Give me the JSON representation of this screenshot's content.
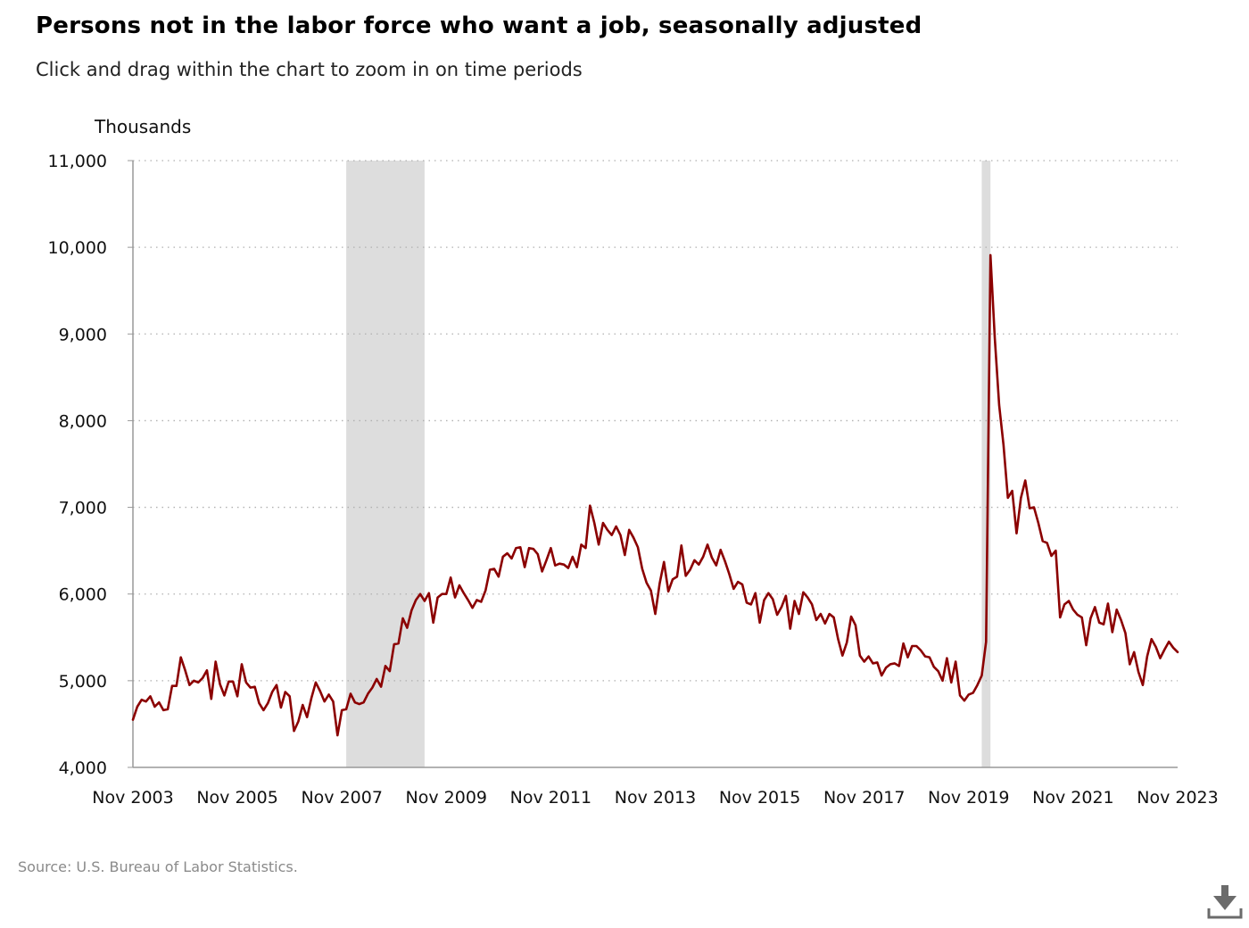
{
  "title": "Persons not in the labor force who want a job, seasonally adjusted",
  "subtitle": "Click and drag within the chart to zoom in on time periods",
  "source": "Source: U.S. Bureau of Labor Statistics.",
  "download_icon": "download-icon",
  "colors": {
    "line": "#8b0000",
    "recession": "#dddddd",
    "grid": "#b0b0b0",
    "axis": "#999999"
  },
  "chart_data": {
    "type": "line",
    "ylabel": "Thousands",
    "ylim": [
      4000,
      11000
    ],
    "yticks": [
      4000,
      5000,
      6000,
      7000,
      8000,
      9000,
      10000,
      11000
    ],
    "ytick_labels": [
      "4,000",
      "5,000",
      "6,000",
      "7,000",
      "8,000",
      "9,000",
      "10,000",
      "11,000"
    ],
    "xlim": [
      "2003-11",
      "2023-11"
    ],
    "xticks": [
      "2003-11",
      "2005-11",
      "2007-11",
      "2009-11",
      "2011-11",
      "2013-11",
      "2015-11",
      "2017-11",
      "2019-11",
      "2021-11",
      "2023-11"
    ],
    "xtick_labels": [
      "Nov 2003",
      "Nov 2005",
      "Nov 2007",
      "Nov 2009",
      "Nov 2011",
      "Nov 2013",
      "Nov 2015",
      "Nov 2017",
      "Nov 2019",
      "Nov 2021",
      "Nov 2023"
    ],
    "grid": "horizontal dotted",
    "recessions": [
      [
        "2007-12",
        "2009-06"
      ],
      [
        "2020-02",
        "2020-04"
      ]
    ],
    "series": [
      {
        "start": "2003-11",
        "frequency": "monthly",
        "values": [
          4550,
          4700,
          4780,
          4760,
          4820,
          4700,
          4750,
          4660,
          4670,
          4940,
          4940,
          5270,
          5120,
          4950,
          5000,
          4980,
          5030,
          5120,
          4790,
          5220,
          4960,
          4830,
          4990,
          4990,
          4820,
          5190,
          4980,
          4920,
          4930,
          4740,
          4660,
          4740,
          4870,
          4950,
          4690,
          4870,
          4820,
          4420,
          4530,
          4720,
          4580,
          4800,
          4980,
          4880,
          4760,
          4840,
          4760,
          4370,
          4660,
          4670,
          4850,
          4750,
          4730,
          4750,
          4850,
          4920,
          5020,
          4930,
          5170,
          5110,
          5420,
          5430,
          5720,
          5610,
          5810,
          5930,
          6000,
          5920,
          6010,
          5670,
          5960,
          6000,
          6000,
          6190,
          5960,
          6100,
          6010,
          5930,
          5840,
          5930,
          5910,
          6040,
          6280,
          6290,
          6200,
          6430,
          6470,
          6410,
          6530,
          6540,
          6310,
          6530,
          6520,
          6460,
          6260,
          6390,
          6530,
          6330,
          6350,
          6340,
          6300,
          6430,
          6310,
          6570,
          6530,
          7020,
          6820,
          6570,
          6820,
          6740,
          6680,
          6780,
          6680,
          6450,
          6740,
          6650,
          6540,
          6290,
          6130,
          6040,
          5770,
          6120,
          6370,
          6030,
          6170,
          6200,
          6560,
          6210,
          6280,
          6390,
          6340,
          6430,
          6570,
          6420,
          6330,
          6510,
          6380,
          6230,
          6060,
          6140,
          6110,
          5900,
          5880,
          6010,
          5670,
          5930,
          6010,
          5940,
          5760,
          5850,
          5980,
          5600,
          5920,
          5770,
          6020,
          5960,
          5880,
          5700,
          5770,
          5660,
          5770,
          5730,
          5480,
          5290,
          5440,
          5740,
          5640,
          5290,
          5220,
          5280,
          5200,
          5210,
          5060,
          5150,
          5190,
          5200,
          5170,
          5430,
          5270,
          5400,
          5400,
          5350,
          5280,
          5270,
          5160,
          5110,
          5000,
          5260,
          4980,
          5220,
          4830,
          4770,
          4840,
          4860,
          4950,
          5060,
          5450,
          9910,
          8950,
          8180,
          7720,
          7110,
          7190,
          6700,
          7110,
          7310,
          6990,
          7000,
          6820,
          6610,
          6590,
          6440,
          6500,
          5730,
          5880,
          5920,
          5820,
          5760,
          5730,
          5410,
          5720,
          5850,
          5670,
          5650,
          5890,
          5560,
          5820,
          5700,
          5550,
          5190,
          5330,
          5100,
          4950,
          5280,
          5480,
          5390,
          5260,
          5360,
          5450,
          5380,
          5330
        ]
      }
    ]
  }
}
